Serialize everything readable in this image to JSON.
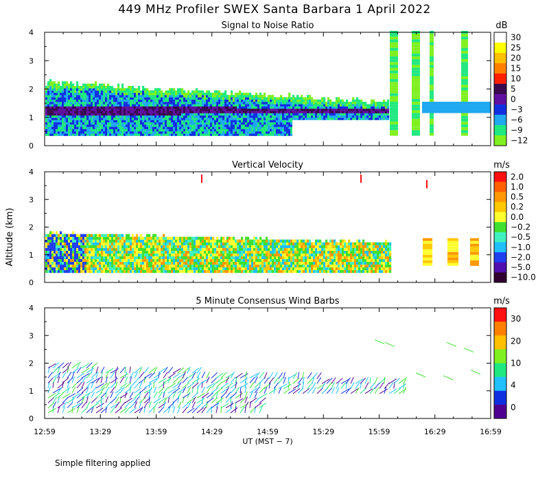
{
  "title": "449 MHz Profiler SWEX Santa Barbara  1 April 2022",
  "footnote": "Simple filtering applied",
  "chart_data": [
    {
      "type": "heatmap",
      "title": "Signal to Noise Ratio",
      "units": "dB",
      "ylabel": "Altitude (km)",
      "ylim": [
        0,
        4
      ],
      "yticks": [
        "0",
        "1",
        "2",
        "3",
        "4"
      ],
      "colorbar_labels": [
        "30",
        "25",
        "20",
        "15",
        "10",
        "5",
        "0",
        "−3",
        "−6",
        "−9",
        "−12"
      ],
      "colorbar_colors": [
        "#ffffff",
        "#ffff00",
        "#ffc000",
        "#ff8000",
        "#ff2000",
        "#3a0a50",
        "#6010a0",
        "#1030e0",
        "#20a8f0",
        "#20e880",
        "#80f020"
      ]
    },
    {
      "type": "heatmap",
      "title": "Vertical Velocity",
      "units": "m/s",
      "ylabel": "Altitude (km)",
      "ylim": [
        0,
        4
      ],
      "yticks": [
        "0",
        "1",
        "2",
        "3",
        "4"
      ],
      "colorbar_labels": [
        "2.0",
        "1.0",
        "0.5",
        "0.2",
        "0.0",
        "−0.2",
        "−0.5",
        "−1.0",
        "−2.0",
        "−5.0",
        "−10.0"
      ],
      "colorbar_colors": [
        "#ff1010",
        "#ff6000",
        "#ff9800",
        "#ffc800",
        "#ffff30",
        "#40e030",
        "#40f0c0",
        "#20c0ff",
        "#2040f0",
        "#5010b0",
        "#300030"
      ]
    },
    {
      "type": "scatter",
      "title": "5 Minute Consensus Wind Barbs",
      "units": "m/s",
      "ylabel": "Altitude (km)",
      "ylim": [
        0,
        4
      ],
      "yticks": [
        "0",
        "1",
        "2",
        "3",
        "4"
      ],
      "colorbar_labels": [
        "30",
        "20",
        "10",
        "4",
        "0"
      ],
      "colorbar_colors": [
        "#ff1010",
        "#ff8000",
        "#ffc000",
        "#80f020",
        "#20e880",
        "#20c0ff",
        "#1030e0",
        "#500090"
      ]
    }
  ],
  "x_axis": {
    "xlabel": "UT  (MST − 7)",
    "tick_labels": [
      "12:59",
      "13:29",
      "13:59",
      "14:29",
      "14:59",
      "15:29",
      "15:59",
      "16:29",
      "16:59"
    ]
  }
}
